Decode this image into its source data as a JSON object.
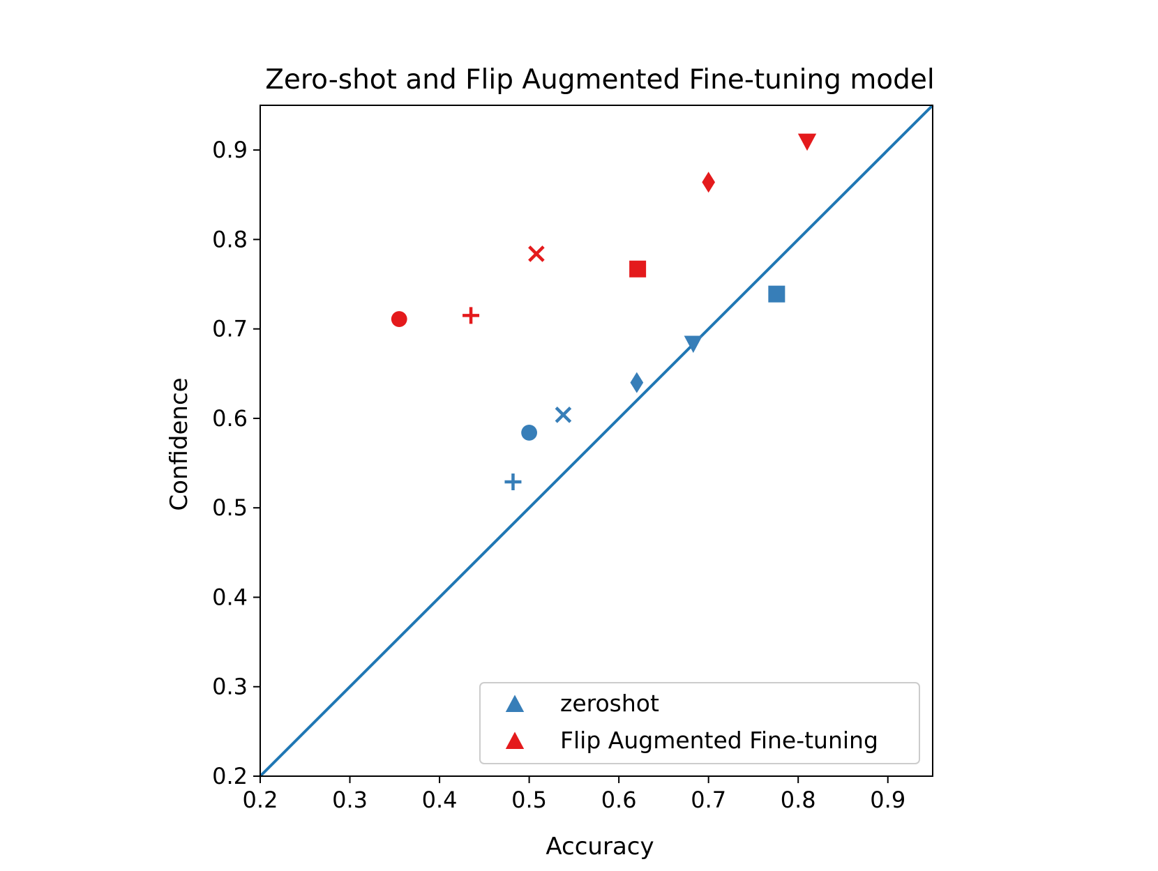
{
  "chart_data": {
    "type": "scatter",
    "title": "Zero-shot and Flip Augmented Fine-tuning model",
    "xlabel": "Accuracy",
    "ylabel": "Confidence",
    "xlim": [
      0.2,
      0.95
    ],
    "ylim": [
      0.2,
      0.95
    ],
    "xticks": [
      "0.2",
      "0.3",
      "0.4",
      "0.5",
      "0.6",
      "0.7",
      "0.8",
      "0.9"
    ],
    "yticks": [
      "0.2",
      "0.3",
      "0.4",
      "0.5",
      "0.6",
      "0.7",
      "0.8",
      "0.9"
    ],
    "grid": false,
    "legend_position": "lower-right",
    "reference_line": {
      "from": [
        0.2,
        0.2
      ],
      "to": [
        0.95,
        0.95
      ],
      "color": "#1f77b4"
    },
    "series": [
      {
        "name": "zeroshot",
        "color": "#377eb8",
        "legend_marker": "triangle-up",
        "points": [
          {
            "x": 0.5,
            "y": 0.584,
            "marker": "circle"
          },
          {
            "x": 0.482,
            "y": 0.529,
            "marker": "plus"
          },
          {
            "x": 0.538,
            "y": 0.604,
            "marker": "x"
          },
          {
            "x": 0.62,
            "y": 0.64,
            "marker": "diamond"
          },
          {
            "x": 0.683,
            "y": 0.683,
            "marker": "triangle-down"
          },
          {
            "x": 0.776,
            "y": 0.739,
            "marker": "square"
          }
        ]
      },
      {
        "name": "Flip Augmented Fine-tuning",
        "color": "#e41a1c",
        "legend_marker": "triangle-up",
        "points": [
          {
            "x": 0.355,
            "y": 0.711,
            "marker": "circle"
          },
          {
            "x": 0.435,
            "y": 0.715,
            "marker": "plus"
          },
          {
            "x": 0.508,
            "y": 0.784,
            "marker": "x"
          },
          {
            "x": 0.621,
            "y": 0.767,
            "marker": "square"
          },
          {
            "x": 0.7,
            "y": 0.864,
            "marker": "diamond"
          },
          {
            "x": 0.81,
            "y": 0.909,
            "marker": "triangle-down"
          }
        ]
      }
    ]
  }
}
